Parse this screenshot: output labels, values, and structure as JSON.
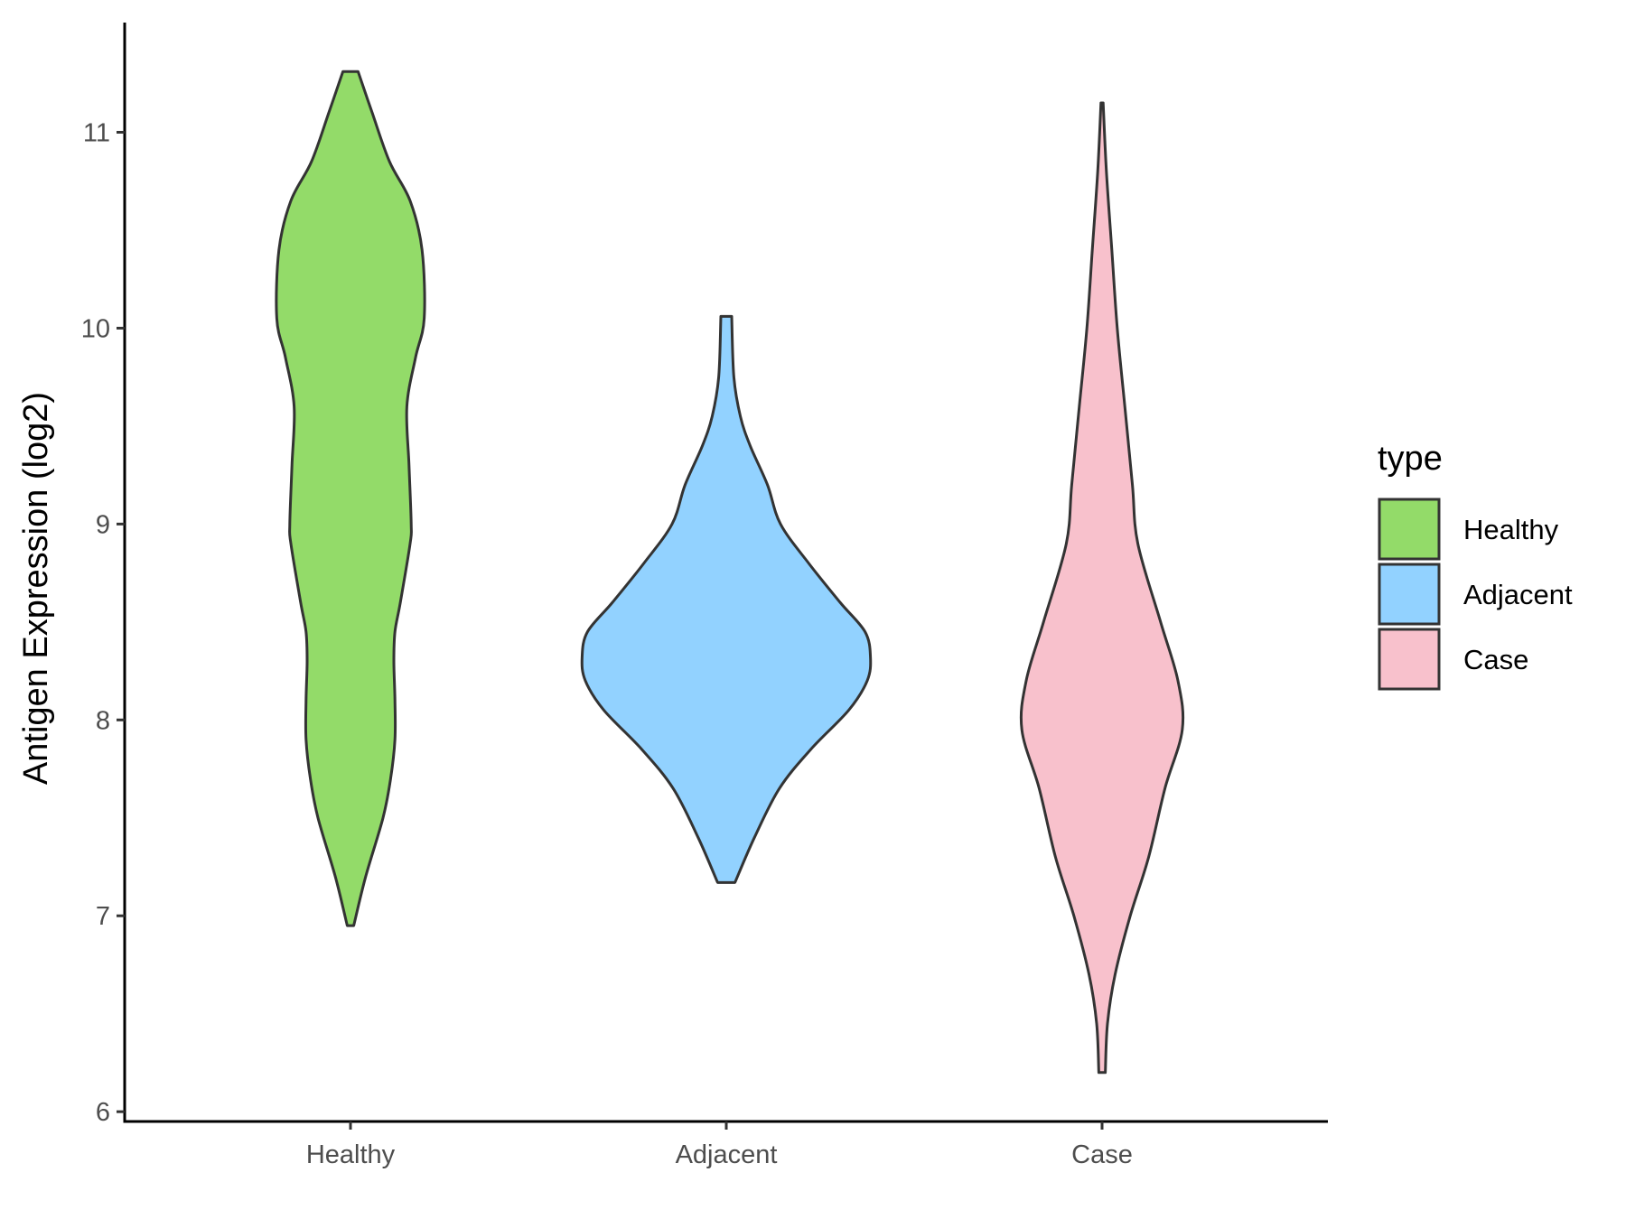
{
  "chart_data": {
    "type": "violin",
    "title": "",
    "xlabel": "",
    "ylabel": "Antigen Expression (log2)",
    "ylim": [
      5.95,
      11.56
    ],
    "yticks": [
      6,
      7,
      8,
      9,
      10,
      11
    ],
    "categories": [
      "Healthy",
      "Adjacent",
      "Case"
    ],
    "legend": {
      "title": "type",
      "position": "right",
      "entries": [
        "Healthy",
        "Adjacent",
        "Case"
      ]
    },
    "series": [
      {
        "category": "Healthy",
        "color": "#93DB69",
        "min": 6.95,
        "max": 11.31,
        "density_profile": [
          [
            6.95,
            0.03
          ],
          [
            7.2,
            0.14
          ],
          [
            7.5,
            0.3
          ],
          [
            7.7,
            0.37
          ],
          [
            7.9,
            0.41
          ],
          [
            8.1,
            0.41
          ],
          [
            8.3,
            0.4
          ],
          [
            8.45,
            0.41
          ],
          [
            8.6,
            0.46
          ],
          [
            8.9,
            0.55
          ],
          [
            9.0,
            0.56
          ],
          [
            9.3,
            0.54
          ],
          [
            9.6,
            0.52
          ],
          [
            9.85,
            0.6
          ],
          [
            10.05,
            0.68
          ],
          [
            10.4,
            0.66
          ],
          [
            10.65,
            0.55
          ],
          [
            10.85,
            0.36
          ],
          [
            11.1,
            0.2
          ],
          [
            11.31,
            0.07
          ]
        ]
      },
      {
        "category": "Adjacent",
        "color": "#92D2FF",
        "min": 7.17,
        "max": 10.06,
        "density_profile": [
          [
            7.17,
            0.08
          ],
          [
            7.4,
            0.26
          ],
          [
            7.65,
            0.49
          ],
          [
            7.85,
            0.78
          ],
          [
            8.05,
            1.13
          ],
          [
            8.2,
            1.3
          ],
          [
            8.32,
            1.33
          ],
          [
            8.45,
            1.28
          ],
          [
            8.6,
            1.05
          ],
          [
            8.8,
            0.76
          ],
          [
            9.0,
            0.5
          ],
          [
            9.2,
            0.38
          ],
          [
            9.4,
            0.22
          ],
          [
            9.55,
            0.13
          ],
          [
            9.75,
            0.07
          ],
          [
            10.06,
            0.05
          ]
        ]
      },
      {
        "category": "Case",
        "color": "#F8C1CC",
        "min": 6.2,
        "max": 11.15,
        "density_profile": [
          [
            6.2,
            0.03
          ],
          [
            6.45,
            0.05
          ],
          [
            6.7,
            0.12
          ],
          [
            7.0,
            0.26
          ],
          [
            7.3,
            0.43
          ],
          [
            7.65,
            0.58
          ],
          [
            7.95,
            0.74
          ],
          [
            8.2,
            0.7
          ],
          [
            8.5,
            0.54
          ],
          [
            8.9,
            0.33
          ],
          [
            9.2,
            0.28
          ],
          [
            9.6,
            0.21
          ],
          [
            10.0,
            0.14
          ],
          [
            10.4,
            0.09
          ],
          [
            10.8,
            0.04
          ],
          [
            11.15,
            0.01
          ]
        ]
      }
    ]
  }
}
